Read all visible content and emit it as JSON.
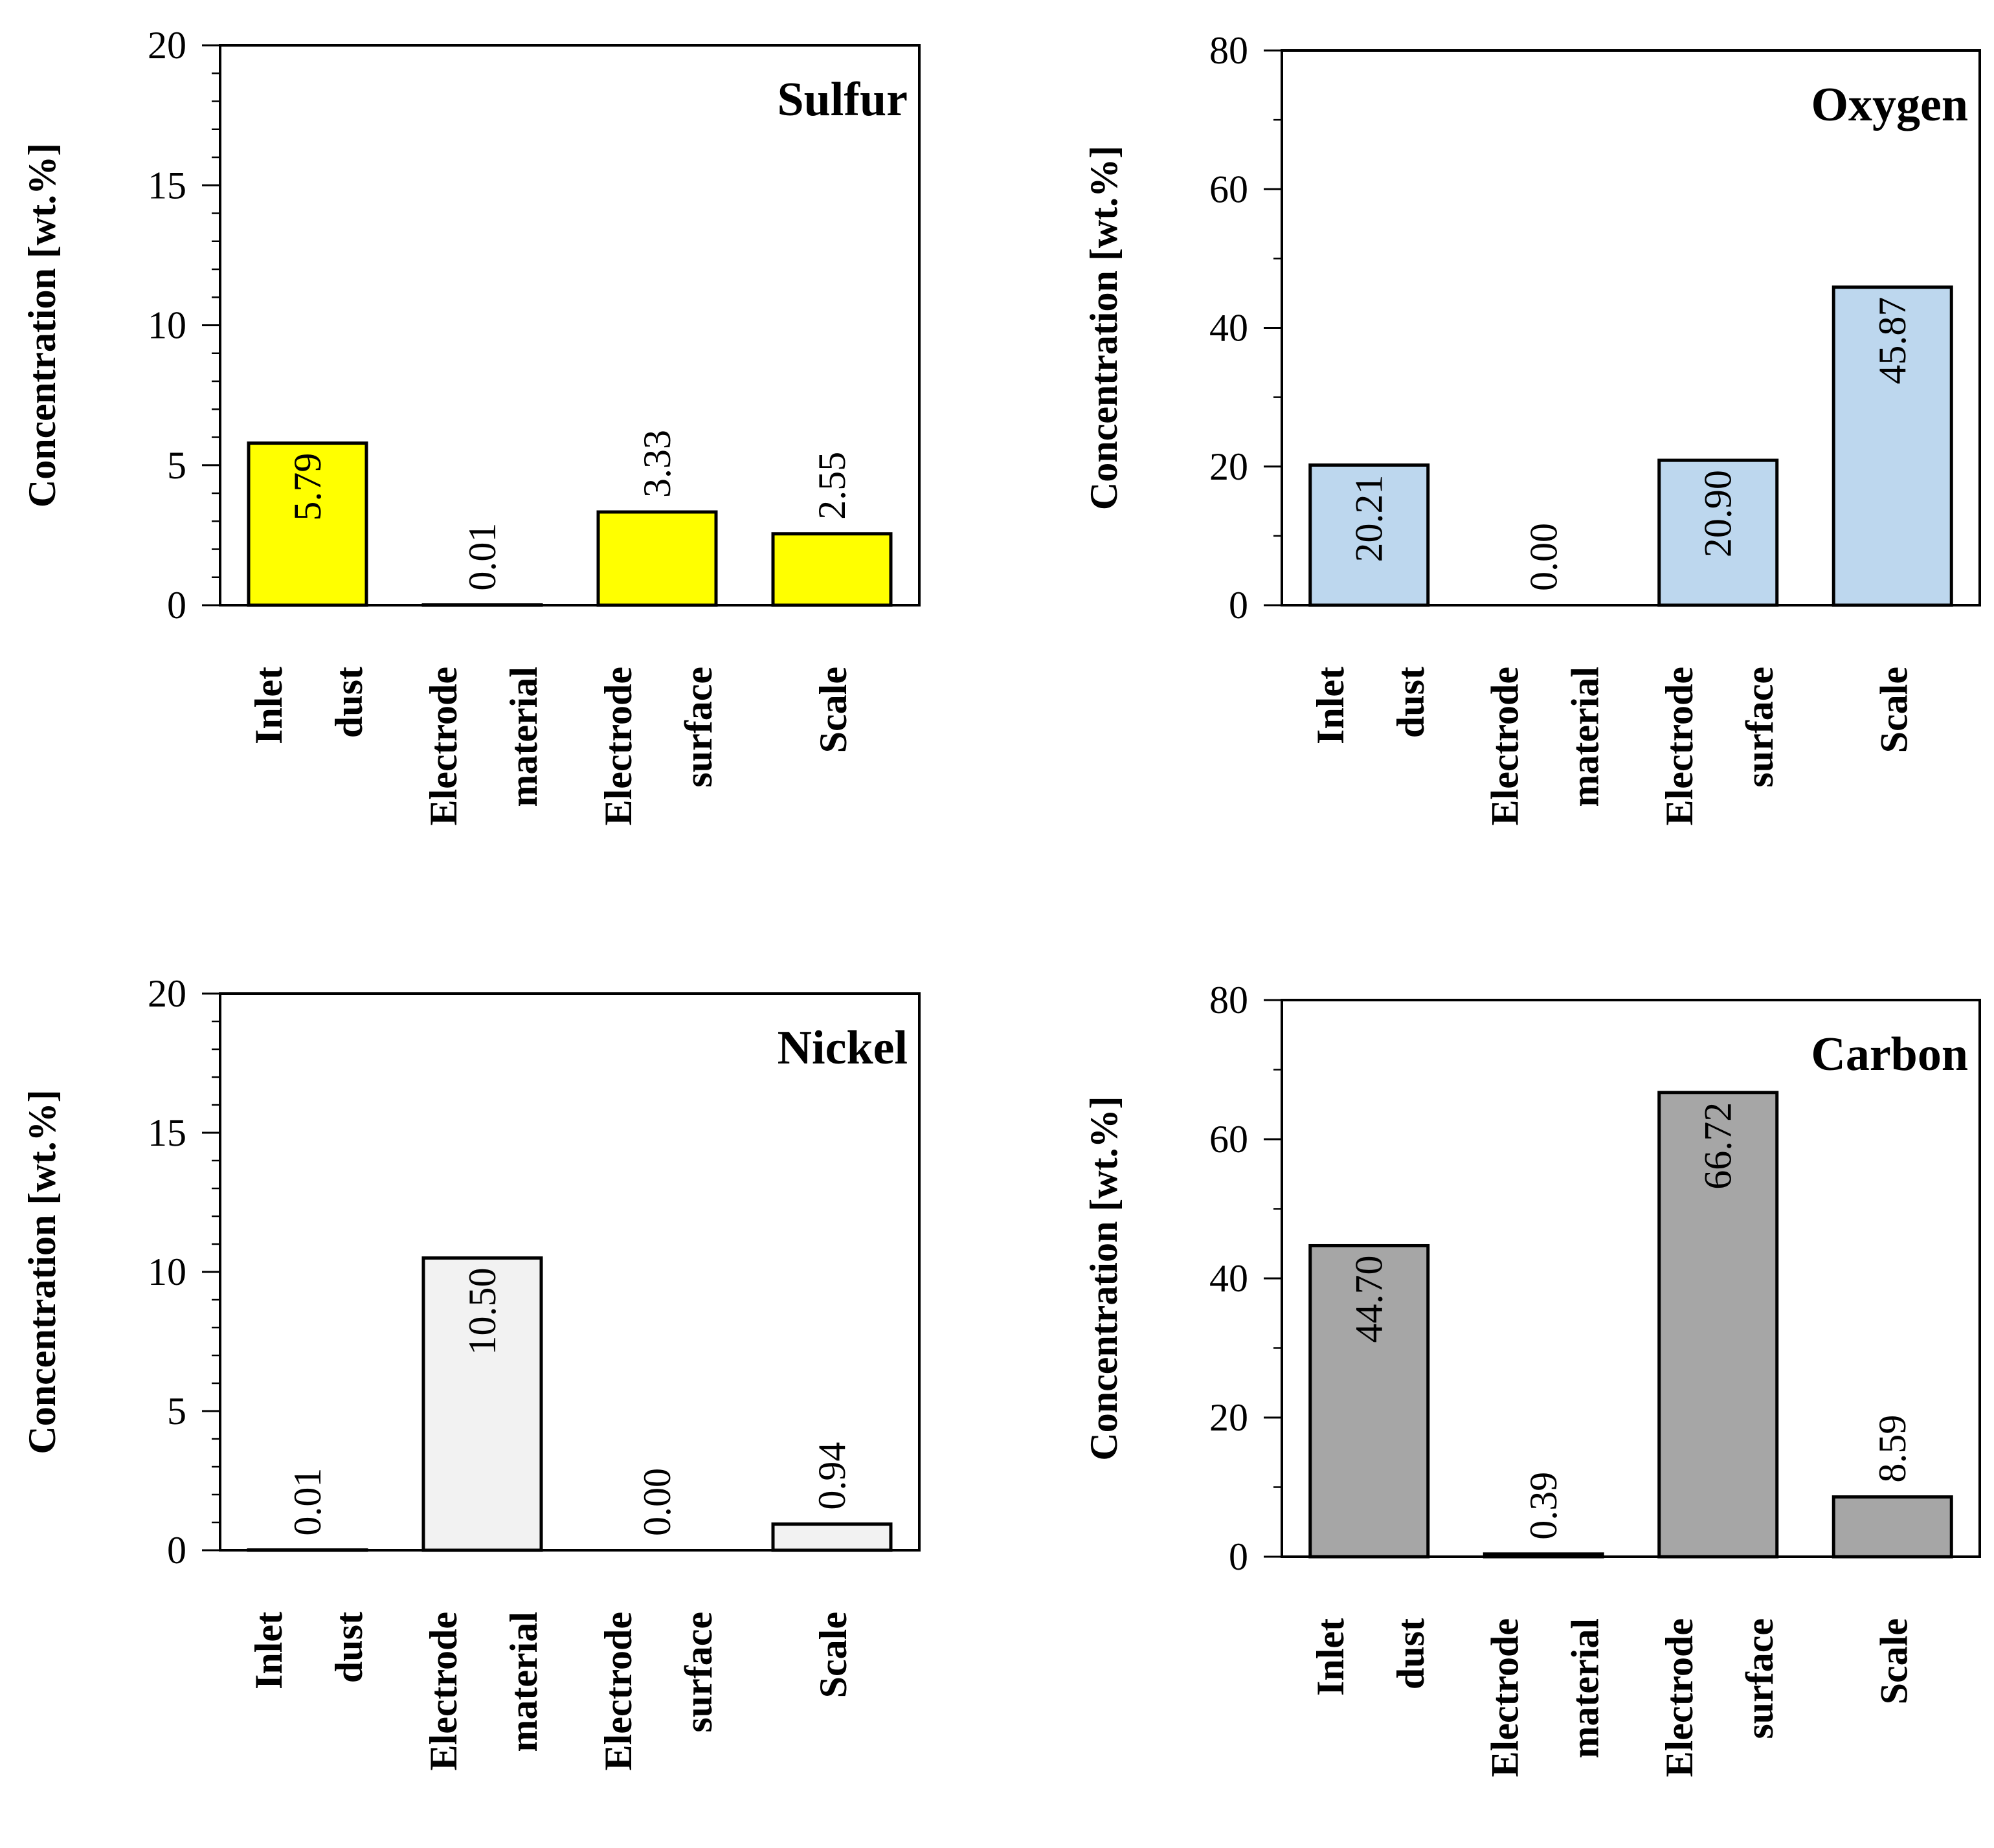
{
  "figure": {
    "categories": [
      [
        "Inlet",
        "dust"
      ],
      [
        "Electrode",
        "material"
      ],
      [
        "Electrode",
        "surface"
      ],
      [
        "Scale"
      ]
    ],
    "ylabel": "Concentration  [wt.%]"
  },
  "chart_data": [
    {
      "type": "bar",
      "title": "Sulfur",
      "ylabel": "Concentration  [wt.%]",
      "categories": [
        "Inlet dust",
        "Electrode material",
        "Electrode surface",
        "Scale"
      ],
      "values": [
        5.79,
        0.01,
        3.33,
        2.55
      ],
      "value_labels": [
        "5.79",
        "0.01",
        "3.33",
        "2.55"
      ],
      "ylim": [
        0,
        20
      ],
      "yticks": [
        0,
        5,
        10,
        15,
        20
      ],
      "minor_step": 1,
      "color": "#ffff00",
      "legend": "none"
    },
    {
      "type": "bar",
      "title": "Oxygen",
      "ylabel": "Concentration  [wt.%]",
      "categories": [
        "Inlet dust",
        "Electrode material",
        "Electrode surface",
        "Scale"
      ],
      "values": [
        20.21,
        0.0,
        20.9,
        45.87
      ],
      "value_labels": [
        "20.21",
        "0.00",
        "20.90",
        "45.87"
      ],
      "ylim": [
        0,
        80
      ],
      "yticks": [
        0,
        20,
        40,
        60,
        80
      ],
      "minor_step": 10,
      "color": "#bdd7ee",
      "legend": "none"
    },
    {
      "type": "bar",
      "title": "Nickel",
      "ylabel": "Concentration  [wt.%]",
      "categories": [
        "Inlet dust",
        "Electrode material",
        "Electrode surface",
        "Scale"
      ],
      "values": [
        0.01,
        10.5,
        0.0,
        0.94
      ],
      "value_labels": [
        "0.01",
        "10.50",
        "0.00",
        "0.94"
      ],
      "ylim": [
        0,
        20
      ],
      "yticks": [
        0,
        5,
        10,
        15,
        20
      ],
      "minor_step": 1,
      "color": "#f2f2f2",
      "legend": "none"
    },
    {
      "type": "bar",
      "title": "Carbon",
      "ylabel": "Concentration  [wt.%]",
      "categories": [
        "Inlet dust",
        "Electrode material",
        "Electrode surface",
        "Scale"
      ],
      "values": [
        44.7,
        0.39,
        66.72,
        8.59
      ],
      "value_labels": [
        "44.70",
        "0.39",
        "66.72",
        "8.59"
      ],
      "ylim": [
        0,
        80
      ],
      "yticks": [
        0,
        20,
        40,
        60,
        80
      ],
      "minor_step": 10,
      "color": "#a6a6a6",
      "legend": "none"
    }
  ]
}
